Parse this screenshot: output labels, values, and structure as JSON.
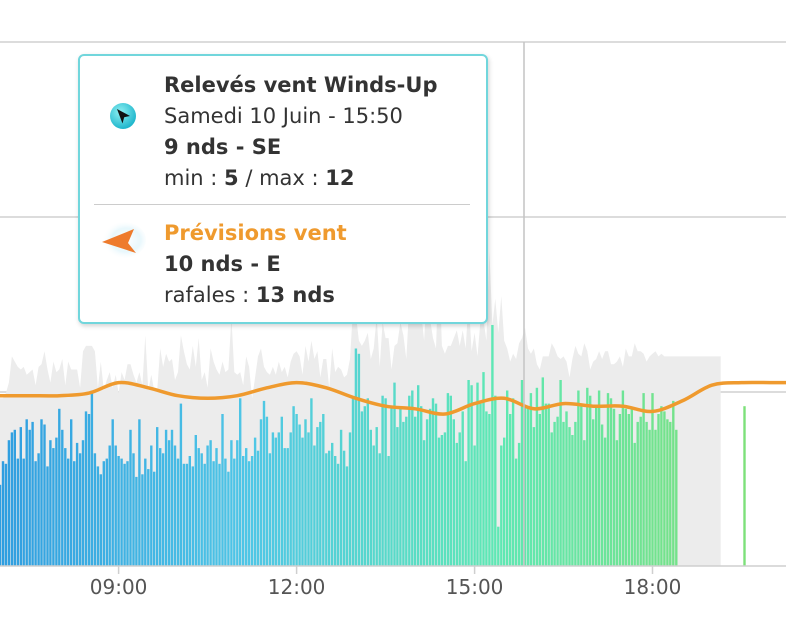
{
  "chart_data": {
    "type": "bar",
    "x_ticks": [
      "09:00",
      "12:00",
      "15:00",
      "18:00"
    ],
    "x_range": [
      "07:00",
      "20:15"
    ],
    "ylim": [
      0,
      20
    ],
    "grid": true,
    "y_gridlines": [
      12,
      17,
      22
    ],
    "crosshair_time": "15:50",
    "series": [
      {
        "type": "bar",
        "color_gradient": [
          "#2f9ee0",
          "#4fc6e6",
          "#5ee8b4",
          "#7de07a"
        ],
        "interval_minutes": 3,
        "values": [
          3.1,
          4.0,
          3.9,
          4.8,
          5.1,
          5.2,
          4.1,
          5.3,
          4.1,
          5.6,
          5.2,
          5.5,
          4.0,
          4.3,
          5.6,
          5.4,
          3.8,
          4.8,
          4.5,
          4.9,
          6.0,
          5.2,
          4.5,
          4.1,
          5.6,
          4.0,
          4.7,
          4.3,
          4.8,
          5.9,
          5.8,
          6.7,
          4.3,
          3.8,
          3.5,
          4.0,
          4.1,
          4.6,
          5.6,
          4.6,
          4.2,
          4.1,
          3.9,
          4.0,
          5.2,
          4.3,
          3.4,
          5.6,
          3.5,
          4.1,
          3.7,
          4.6,
          3.6,
          5.3,
          4.5,
          4.3,
          5.2,
          4.8,
          5.2,
          4.6,
          4.1,
          6.2,
          3.9,
          3.9,
          4.2,
          3.8,
          5.0,
          4.5,
          4.3,
          3.9,
          4.6,
          4.8,
          4.0,
          4.5,
          3.9,
          5.8,
          4.1,
          3.6,
          4.8,
          4.1,
          4.8,
          6.4,
          4.2,
          4.5,
          4.0,
          4.2,
          4.9,
          4.4,
          5.6,
          6.3,
          5.7,
          4.3,
          5.1,
          4.9,
          5.1,
          5.7,
          4.5,
          4.5,
          5.1,
          6.1,
          5.8,
          5.4,
          4.9,
          5.6,
          5.1,
          6.4,
          4.6,
          5.3,
          5.5,
          5.8,
          4.3,
          4.4,
          4.7,
          4.2,
          3.9,
          5.2,
          4.4,
          3.8,
          5.1,
          6.4,
          8.3,
          8.1,
          5.9,
          6.1,
          6.4,
          5.2,
          4.6,
          5.3,
          4.3,
          6.5,
          6.4,
          4.2,
          6.1,
          7.0,
          5.3,
          6.0,
          5.5,
          5.7,
          6.5,
          6.7,
          5.7,
          6.9,
          6.1,
          4.8,
          5.6,
          6.0,
          6.4,
          6.2,
          4.9,
          5.0,
          5.1,
          6.6,
          6.5,
          5.6,
          4.7,
          5.1,
          5.9,
          4.0,
          7.1,
          6.9,
          4.6,
          7.0,
          6.2,
          7.4,
          5.9,
          5.8,
          9.2,
          6.5,
          1.5,
          4.6,
          4.9,
          6.7,
          5.8,
          6.4,
          4.1,
          4.7,
          7.1,
          6.1,
          6.1,
          6.6,
          5.3,
          6.8,
          5.8,
          7.2,
          6.2,
          6.2,
          5.1,
          5.5,
          5.7,
          7.1,
          5.5,
          5.9,
          5.3,
          5.0,
          5.5,
          6.7,
          6.2,
          4.8,
          6.8,
          6.5,
          5.6,
          6.1,
          6.7,
          5.4,
          4.9,
          6.6,
          6.4,
          6.0,
          4.8,
          5.8,
          6.7,
          6.0,
          5.8,
          6.0,
          4.7,
          5.5,
          5.7,
          6.6,
          5.5,
          5.2,
          6.6,
          5.2,
          5.8,
          6.1,
          5.9,
          5.6,
          5.5,
          6.3,
          5.2,
          0,
          0,
          0,
          0,
          0,
          0,
          0,
          0,
          0,
          0,
          0,
          0,
          0,
          0,
          0,
          0,
          0,
          0,
          0,
          0,
          0,
          0,
          6.1
        ]
      },
      {
        "type": "area",
        "color": "#ececec",
        "interval_minutes": 3,
        "values": [
          6.4,
          6.4,
          6.6,
          7.0,
          8.0,
          7.8,
          7.6,
          7.5,
          7.6,
          7.3,
          7.4,
          7.5,
          6.9,
          7.6,
          7.7,
          8.2,
          7.5,
          7.0,
          7.8,
          7.4,
          7.5,
          7.9,
          6.9,
          7.8,
          7.5,
          7.5,
          7.5,
          6.8,
          8.2,
          8.4,
          8.4,
          8.4,
          8.2,
          6.8,
          7.8,
          6.7,
          7.1,
          7.4,
          6.8,
          7.3,
          6.6,
          7.4,
          7.1,
          7.7,
          7.7,
          7.3,
          7.0,
          7.4,
          6.9,
          8.8,
          6.7,
          7.3,
          6.7,
          6.7,
          8.3,
          7.6,
          8.1,
          7.8,
          7.9,
          7.1,
          7.4,
          8.8,
          8.2,
          7.7,
          7.5,
          8.4,
          7.6,
          8.7,
          7.1,
          7.4,
          6.8,
          8.3,
          7.8,
          7.5,
          7.3,
          7.8,
          7.4,
          7.5,
          9.5,
          7.4,
          7.3,
          7.4,
          6.9,
          8.0,
          7.6,
          6.4,
          7.2,
          8.0,
          8.3,
          7.6,
          7.4,
          7.3,
          7.6,
          7.3,
          7.8,
          7.4,
          7.6,
          7.2,
          7.8,
          8.1,
          8.2,
          8.0,
          7.3,
          8.4,
          7.8,
          8.6,
          7.9,
          8.2,
          7.2,
          7.9,
          7.9,
          6.8,
          8.3,
          7.4,
          7.6,
          7.5,
          7.2,
          7.3,
          7.9,
          9.8,
          9.6,
          8.6,
          8.4,
          8.6,
          8.9,
          7.9,
          8.3,
          9.5,
          7.6,
          9.3,
          8.7,
          8.7,
          7.5,
          8.4,
          8.5,
          9.3,
          8.8,
          7.9,
          10.0,
          9.6,
          10.3,
          9.4,
          9.7,
          8.6,
          10.6,
          9.4,
          8.7,
          8.3,
          11.7,
          8.4,
          8.1,
          8.4,
          8.4,
          8.7,
          9.0,
          8.4,
          9.0,
          8.3,
          10.2,
          8.2,
          8.9,
          8.0,
          9.4,
          9.4,
          8.6,
          12.0,
          9.2,
          10.2,
          8.9,
          10.3,
          8.6,
          8.3,
          7.8,
          8.1,
          7.9,
          8.5,
          8.7,
          9.1,
          8.3,
          8.1,
          8.3,
          7.7,
          7.5,
          8.0,
          8.0,
          8.0,
          8.5,
          8.3,
          8.0,
          7.9,
          8.0,
          7.8,
          7.2,
          7.9,
          8.4,
          8.1,
          8.0,
          8.5,
          8.2,
          7.5,
          7.8,
          7.9,
          8.2,
          7.9,
          8.2,
          8.2,
          7.7,
          7.7,
          7.8,
          8.0,
          7.6,
          8.3,
          8.0,
          8.0,
          8.5,
          8.2,
          8.2,
          8.1,
          7.8,
          8.0,
          8.1,
          8.2,
          8.0,
          8.1,
          8.0,
          8.0,
          8.0,
          8.0,
          8.0,
          8.0,
          8.0,
          8.0,
          8.0,
          8.0,
          8.0,
          8.0,
          8.0,
          8.0,
          8.0,
          8.0,
          8.0,
          8.0,
          8.0,
          8.0
        ]
      },
      {
        "type": "line",
        "color": "#ef9a2e",
        "x": [
          "07:00",
          "07:30",
          "08:00",
          "08:30",
          "09:00",
          "09:30",
          "10:00",
          "10:30",
          "11:00",
          "11:30",
          "12:00",
          "12:30",
          "13:00",
          "13:30",
          "14:00",
          "14:30",
          "15:00",
          "15:30",
          "16:00",
          "16:30",
          "17:00",
          "17:30",
          "18:00",
          "18:30",
          "19:00",
          "19:30",
          "20:00",
          "20:15"
        ],
        "values": [
          6.5,
          6.5,
          6.5,
          6.6,
          7.0,
          6.8,
          6.5,
          6.4,
          6.5,
          6.8,
          7.0,
          6.8,
          6.4,
          6.1,
          6.0,
          5.8,
          6.2,
          6.4,
          6.0,
          6.2,
          6.1,
          6.1,
          5.9,
          6.3,
          6.9,
          7.0,
          7.0,
          7.0
        ]
      }
    ]
  },
  "tooltip": {
    "border_color": "#71d6dc",
    "measure": {
      "icon": "cursor-arrow-icon",
      "icon_color": "#29c0d6",
      "title": "Relevés vent Winds-Up",
      "datetime": "Samedi 10 Juin - 15:50",
      "speed_dir": "9 nds - SE",
      "min_label": "min : ",
      "min_value": "5",
      "sep": " / max : ",
      "max_value": "12"
    },
    "forecast": {
      "icon": "wind-direction-arrow-icon",
      "icon_color": "#ee7b2d",
      "title": "Prévisions vent",
      "title_color": "#ef9a2e",
      "speed_dir": "10 nds - E",
      "gust_label": "rafales : ",
      "gust_value": "13 nds"
    }
  }
}
